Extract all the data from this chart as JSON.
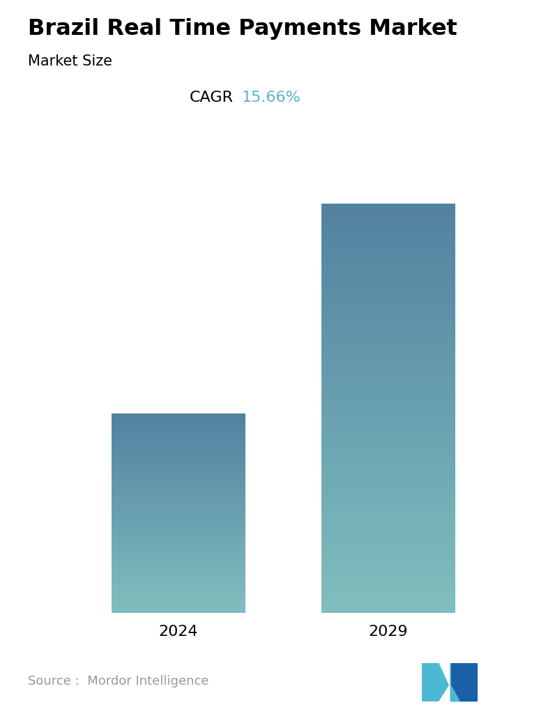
{
  "title": "Brazil Real Time Payments Market",
  "subtitle": "Market Size",
  "cagr_label": "CAGR",
  "cagr_value": "15.66%",
  "cagr_color": "#5ab4cc",
  "categories": [
    "2024",
    "2029"
  ],
  "values": [
    0.38,
    0.78
  ],
  "bar_color_top": "#5282a0",
  "bar_color_bottom": "#80bfbf",
  "background_color": "#ffffff",
  "title_fontsize": 23,
  "subtitle_fontsize": 15,
  "cagr_fontsize": 16,
  "tick_fontsize": 16,
  "source_text": "Source :  Mordor Intelligence",
  "source_fontsize": 13,
  "source_color": "#999999",
  "logo_teal": "#4db8d4",
  "logo_blue": "#1a5fa8"
}
